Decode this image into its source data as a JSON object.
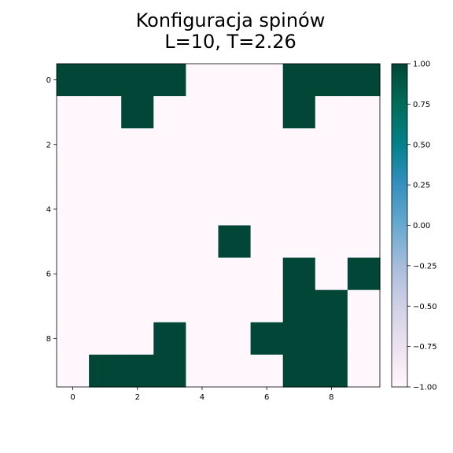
{
  "chart_data": {
    "type": "heatmap",
    "title_lines": [
      "Konfiguracja spinów",
      "L=10, T=2.26"
    ],
    "xlabel": "",
    "ylabel": "",
    "grid": false,
    "rows": 10,
    "cols": 10,
    "values": [
      [
        1,
        1,
        1,
        1,
        -1,
        -1,
        -1,
        1,
        1,
        1
      ],
      [
        -1,
        -1,
        1,
        -1,
        -1,
        -1,
        -1,
        1,
        -1,
        -1
      ],
      [
        -1,
        -1,
        -1,
        -1,
        -1,
        -1,
        -1,
        -1,
        -1,
        -1
      ],
      [
        -1,
        -1,
        -1,
        -1,
        -1,
        -1,
        -1,
        -1,
        -1,
        -1
      ],
      [
        -1,
        -1,
        -1,
        -1,
        -1,
        -1,
        -1,
        -1,
        -1,
        -1
      ],
      [
        -1,
        -1,
        -1,
        -1,
        -1,
        1,
        -1,
        -1,
        -1,
        -1
      ],
      [
        -1,
        -1,
        -1,
        -1,
        -1,
        -1,
        -1,
        1,
        -1,
        1
      ],
      [
        -1,
        -1,
        -1,
        -1,
        -1,
        -1,
        -1,
        1,
        1,
        -1
      ],
      [
        -1,
        -1,
        -1,
        1,
        -1,
        -1,
        1,
        1,
        1,
        -1
      ],
      [
        -1,
        1,
        1,
        1,
        -1,
        -1,
        -1,
        1,
        1,
        -1
      ]
    ],
    "x_ticks": [
      0,
      2,
      4,
      6,
      8
    ],
    "y_ticks": [
      0,
      2,
      4,
      6,
      8
    ],
    "colorbar": {
      "min": -1.0,
      "max": 1.0,
      "ticks": [
        "1.00",
        "0.75",
        "0.50",
        "0.25",
        "0.00",
        "−0.25",
        "−0.50",
        "−0.75",
        "−1.00"
      ],
      "colormap": "PuBuGn",
      "stops": [
        "#fff7fb",
        "#ece2f0",
        "#d0d1e6",
        "#a6bddb",
        "#67a9cf",
        "#3690c0",
        "#02818a",
        "#016c59",
        "#014636"
      ]
    }
  }
}
